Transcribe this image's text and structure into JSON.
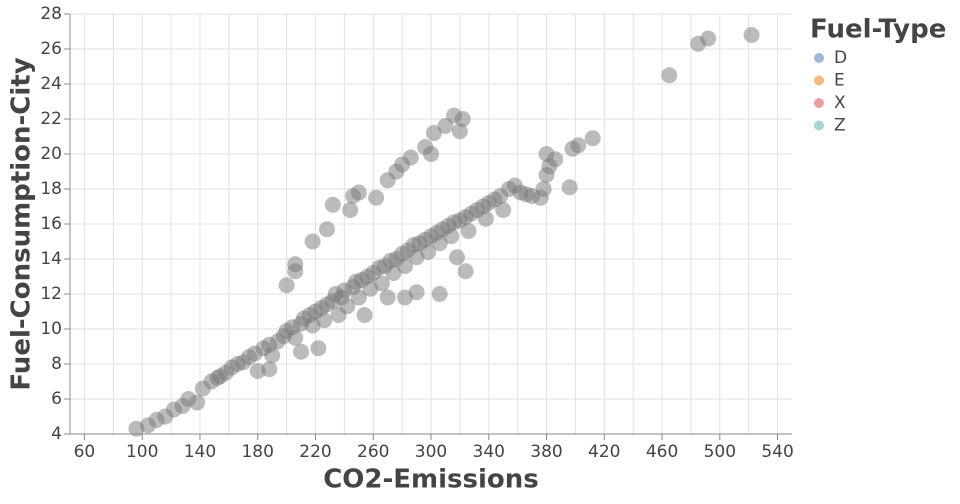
{
  "chart_data": {
    "type": "scatter",
    "x_label": "CO2-Emissions",
    "y_label": "Fuel-Consumption-City",
    "xlim": [
      50,
      550
    ],
    "ylim": [
      4,
      28
    ],
    "xticks": [
      60,
      100,
      140,
      180,
      220,
      260,
      300,
      340,
      380,
      420,
      460,
      500,
      540
    ],
    "x_minor_grid": [
      80,
      120,
      160,
      200,
      240,
      280,
      320,
      360,
      400,
      440,
      480,
      520
    ],
    "yticks": [
      4,
      6,
      8,
      10,
      12,
      14,
      16,
      18,
      20,
      22,
      24,
      26,
      28
    ],
    "grid": true,
    "point_color": "#777777",
    "legend": {
      "title": "Fuel-Type",
      "position": "right",
      "items": [
        {
          "name": "D",
          "color": "#a2b6d8"
        },
        {
          "name": "E",
          "color": "#f4b97e"
        },
        {
          "name": "X",
          "color": "#ec9fa0"
        },
        {
          "name": "Z",
          "color": "#a8d7d3"
        }
      ]
    },
    "x": [
      96,
      104,
      110,
      116,
      122,
      128,
      132,
      138,
      142,
      148,
      152,
      158,
      162,
      166,
      170,
      174,
      178,
      180,
      184,
      188,
      190,
      194,
      198,
      200,
      204,
      206,
      210,
      212,
      216,
      218,
      220,
      224,
      226,
      228,
      232,
      234,
      238,
      240,
      242,
      246,
      248,
      250,
      252,
      256,
      258,
      260,
      264,
      266,
      268,
      272,
      274,
      276,
      280,
      282,
      284,
      288,
      290,
      292,
      296,
      298,
      300,
      304,
      306,
      308,
      312,
      314,
      316,
      320,
      324,
      326,
      328,
      332,
      336,
      338,
      340,
      344,
      348,
      350,
      354,
      358,
      362,
      366,
      370,
      376,
      380,
      382,
      386,
      396,
      398,
      402,
      412,
      380,
      378,
      210,
      222,
      236,
      254,
      270,
      282,
      290,
      306,
      324,
      318,
      188,
      154,
      200,
      206,
      206,
      218,
      232,
      244,
      246,
      250,
      262,
      270,
      276,
      280,
      286,
      296,
      300,
      302,
      310,
      316,
      322,
      320,
      228,
      465,
      485,
      492,
      522
    ],
    "y": [
      4.3,
      4.5,
      4.8,
      5.0,
      5.4,
      5.6,
      6.0,
      5.8,
      6.6,
      7.0,
      7.2,
      7.5,
      7.8,
      8.0,
      8.1,
      8.4,
      8.6,
      7.6,
      8.9,
      9.1,
      8.5,
      9.3,
      9.6,
      9.9,
      10.1,
      9.5,
      10.3,
      10.6,
      10.8,
      10.2,
      11.0,
      11.2,
      10.5,
      11.4,
      11.6,
      12.0,
      11.8,
      12.2,
      11.3,
      12.4,
      12.7,
      11.8,
      12.8,
      13.0,
      12.3,
      13.2,
      13.5,
      12.6,
      13.6,
      13.9,
      13.2,
      14.0,
      14.3,
      13.6,
      14.5,
      14.8,
      14.1,
      14.9,
      15.1,
      14.4,
      15.3,
      15.5,
      14.9,
      15.7,
      15.9,
      15.3,
      16.1,
      16.2,
      16.4,
      15.6,
      16.6,
      16.8,
      17.0,
      16.3,
      17.2,
      17.4,
      17.6,
      16.8,
      18.0,
      18.2,
      17.8,
      17.7,
      17.6,
      17.5,
      20.0,
      19.3,
      19.7,
      18.1,
      20.3,
      20.5,
      20.9,
      18.8,
      18.0,
      8.7,
      8.9,
      10.8,
      10.8,
      11.8,
      11.8,
      12.1,
      12.0,
      13.3,
      14.1,
      7.7,
      7.3,
      12.5,
      13.3,
      13.7,
      15.0,
      17.1,
      16.8,
      17.6,
      17.8,
      17.5,
      18.5,
      19.0,
      19.4,
      19.8,
      20.4,
      20.0,
      21.2,
      21.6,
      22.2,
      22.0,
      21.3,
      15.7,
      24.5,
      26.3,
      26.6,
      26.8
    ]
  }
}
